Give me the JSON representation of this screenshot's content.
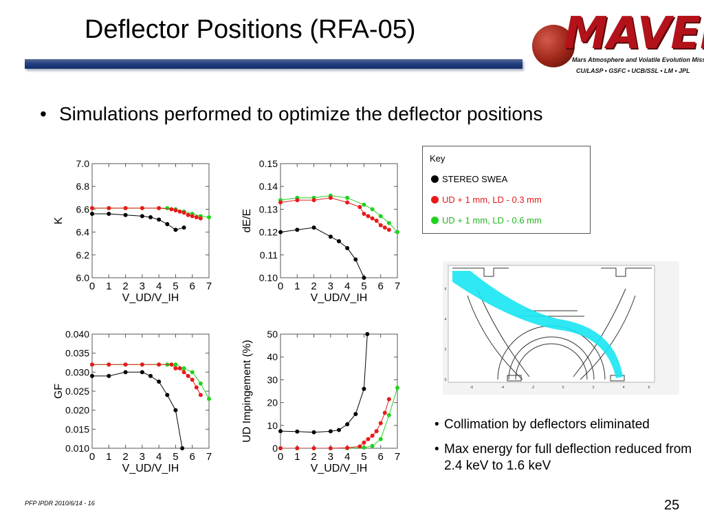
{
  "title": "Deflector Positions (RFA-05)",
  "logo": {
    "wordmark": "MAVEN",
    "mission": "Mars Atmosphere and Volatile Evolution Mission",
    "partners": "CU/LASP • GSFC • UCB/SSL • LM • JPL"
  },
  "bullet": "Simulations performed to optimize the deflector positions",
  "key": {
    "title": "Key",
    "items": [
      {
        "label": "STEREO SWEA",
        "color": "#000000"
      },
      {
        "label": "UD + 1 mm, LD - 0.3 mm",
        "color": "#e8191b"
      },
      {
        "label": "UD + 1 mm, LD - 0.6 mm",
        "color": "#22d11f"
      }
    ]
  },
  "side_bullets": [
    "Collimation by deflectors eliminated",
    "Max energy for full deflection reduced from 2.4 keV to 1.6 keV"
  ],
  "footer": "PFP IPDR 2010/6/14 - 16",
  "page_number": "25",
  "diagram": {
    "x_ticks": [
      "-6",
      "-4",
      "-2",
      "0",
      "2",
      "4",
      "6"
    ],
    "y_ticks": [
      "6",
      "4",
      "2",
      "0"
    ],
    "beam_color": "#17e6f2"
  },
  "chart_data": [
    {
      "type": "line",
      "xlabel": "V_UD/V_IH",
      "ylabel": "K",
      "xlim": [
        0,
        7
      ],
      "ylim": [
        6.0,
        7.0
      ],
      "x_ticks": [
        "0",
        "1",
        "2",
        "3",
        "4",
        "5",
        "6",
        "7"
      ],
      "y_ticks": [
        "7.0",
        "6.8",
        "6.6",
        "6.4",
        "6.2",
        "6.0"
      ],
      "series": [
        {
          "name": "STEREO SWEA",
          "color": "#000000",
          "x": [
            0,
            1,
            2,
            3,
            3.5,
            4,
            4.5,
            5,
            5.5
          ],
          "y": [
            6.56,
            6.56,
            6.55,
            6.54,
            6.53,
            6.51,
            6.47,
            6.42,
            6.44
          ]
        },
        {
          "name": "UD + 1 mm, LD - 0.3 mm",
          "color": "#e8191b",
          "x": [
            0,
            1,
            2,
            3,
            4,
            4.75,
            5,
            5.25,
            5.5,
            5.75,
            6,
            6.25,
            6.5
          ],
          "y": [
            6.61,
            6.61,
            6.61,
            6.61,
            6.61,
            6.6,
            6.59,
            6.58,
            6.57,
            6.55,
            6.54,
            6.53,
            6.52
          ]
        },
        {
          "name": "UD + 1 mm, LD - 0.6 mm",
          "color": "#22d11f",
          "x": [
            0,
            1,
            2,
            3,
            4,
            4.5,
            5,
            5.5,
            6,
            6.5,
            7
          ],
          "y": [
            6.61,
            6.61,
            6.61,
            6.61,
            6.61,
            6.61,
            6.6,
            6.58,
            6.56,
            6.54,
            6.53
          ]
        }
      ]
    },
    {
      "type": "line",
      "xlabel": "V_UD/V_IH",
      "ylabel": "dE/E",
      "xlim": [
        0,
        7
      ],
      "ylim": [
        0.1,
        0.15
      ],
      "x_ticks": [
        "0",
        "1",
        "2",
        "3",
        "4",
        "5",
        "6",
        "7"
      ],
      "y_ticks": [
        "0.15",
        "0.14",
        "0.13",
        "0.12",
        "0.11",
        "0.10"
      ],
      "series": [
        {
          "name": "STEREO SWEA",
          "color": "#000000",
          "x": [
            0,
            1,
            2,
            3,
            3.5,
            4,
            4.5,
            5
          ],
          "y": [
            0.12,
            0.121,
            0.122,
            0.118,
            0.116,
            0.113,
            0.108,
            0.1
          ]
        },
        {
          "name": "UD + 1 mm, LD - 0.3 mm",
          "color": "#e8191b",
          "x": [
            0,
            1,
            2,
            3,
            4,
            4.75,
            5,
            5.25,
            5.5,
            5.75,
            6,
            6.25,
            6.5
          ],
          "y": [
            0.133,
            0.134,
            0.134,
            0.135,
            0.133,
            0.131,
            0.128,
            0.127,
            0.126,
            0.125,
            0.123,
            0.122,
            0.121
          ]
        },
        {
          "name": "UD + 1 mm, LD - 0.6 mm",
          "color": "#22d11f",
          "x": [
            0,
            1,
            2,
            3,
            4,
            5,
            5.5,
            6,
            6.5,
            7
          ],
          "y": [
            0.134,
            0.135,
            0.135,
            0.136,
            0.135,
            0.132,
            0.13,
            0.127,
            0.124,
            0.12
          ]
        }
      ]
    },
    {
      "type": "line",
      "xlabel": "V_UD/V_IH",
      "ylabel": "GF",
      "xlim": [
        0,
        7
      ],
      "ylim": [
        0.01,
        0.04
      ],
      "x_ticks": [
        "0",
        "1",
        "2",
        "3",
        "4",
        "5",
        "6",
        "7"
      ],
      "y_ticks": [
        "0.040",
        "0.035",
        "0.030",
        "0.025",
        "0.020",
        "0.015",
        "0.010"
      ],
      "series": [
        {
          "name": "STEREO SWEA",
          "color": "#000000",
          "x": [
            0,
            1,
            2,
            3,
            3.5,
            4,
            4.5,
            5,
            5.4
          ],
          "y": [
            0.029,
            0.029,
            0.03,
            0.03,
            0.029,
            0.0275,
            0.024,
            0.02,
            0.01
          ]
        },
        {
          "name": "UD + 1 mm, LD - 0.3 mm",
          "color": "#e8191b",
          "x": [
            0,
            1,
            2,
            3,
            4,
            4.75,
            5,
            5.25,
            5.5,
            5.75,
            6,
            6.25,
            6.5
          ],
          "y": [
            0.032,
            0.032,
            0.032,
            0.032,
            0.032,
            0.032,
            0.031,
            0.031,
            0.03,
            0.029,
            0.028,
            0.026,
            0.024
          ]
        },
        {
          "name": "UD + 1 mm, LD - 0.6 mm",
          "color": "#22d11f",
          "x": [
            0,
            1,
            2,
            3,
            4,
            4.5,
            5,
            5.5,
            6,
            6.5,
            7
          ],
          "y": [
            0.032,
            0.032,
            0.032,
            0.032,
            0.032,
            0.032,
            0.032,
            0.031,
            0.03,
            0.027,
            0.023
          ]
        }
      ]
    },
    {
      "type": "line",
      "xlabel": "V_UD/V_IH",
      "ylabel": "UD Impingement (%)",
      "xlim": [
        0,
        7
      ],
      "ylim": [
        0,
        50
      ],
      "x_ticks": [
        "0",
        "1",
        "2",
        "3",
        "4",
        "5",
        "6",
        "7"
      ],
      "y_ticks": [
        "50",
        "40",
        "30",
        "20",
        "10",
        "0"
      ],
      "series": [
        {
          "name": "STEREO SWEA",
          "color": "#000000",
          "x": [
            0,
            1,
            2,
            3,
            3.5,
            4,
            4.5,
            5,
            5.2
          ],
          "y": [
            7.5,
            7.3,
            7.0,
            7.4,
            8.0,
            10.5,
            15.0,
            26.0,
            50
          ]
        },
        {
          "name": "UD + 1 mm, LD - 0.3 mm",
          "color": "#e8191b",
          "x": [
            0,
            1,
            2,
            3,
            4,
            4.75,
            5,
            5.25,
            5.5,
            5.75,
            6,
            6.25,
            6.5
          ],
          "y": [
            0,
            0,
            0,
            0,
            0.2,
            0.8,
            2.5,
            4.0,
            5.5,
            7.5,
            11.0,
            15.5,
            21.5
          ]
        },
        {
          "name": "UD + 1 mm, LD - 0.6 mm",
          "color": "#22d11f",
          "x": [
            0,
            1,
            2,
            3,
            4,
            5,
            5.5,
            6,
            6.5,
            7
          ],
          "y": [
            0,
            0,
            0,
            0,
            0,
            0.3,
            1.0,
            4.0,
            14.5,
            26.5
          ]
        }
      ]
    }
  ]
}
